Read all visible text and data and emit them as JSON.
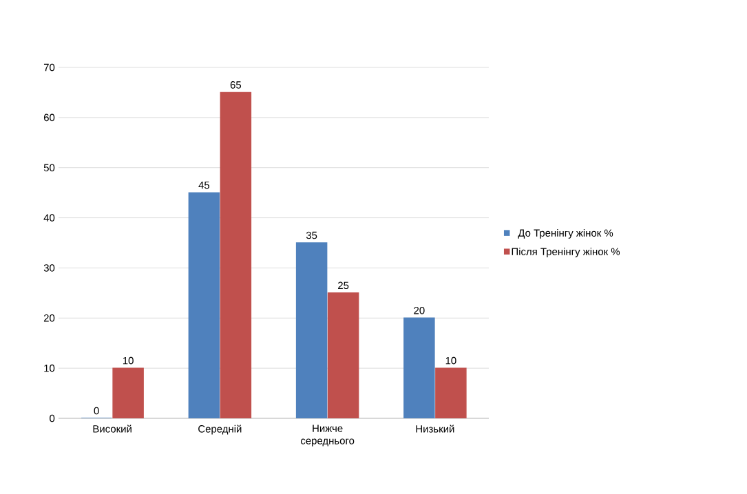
{
  "chart_data": {
    "type": "bar",
    "categories": [
      "Високий",
      "Середній",
      "Нижче середнього",
      "Низький"
    ],
    "series": [
      {
        "name": "До Тренінгу жінок %",
        "color": "#4f81bd",
        "values": [
          0,
          45,
          35,
          20
        ]
      },
      {
        "name": "Після Тренінгу жінок %",
        "color": "#c0504d",
        "values": [
          10,
          65,
          25,
          10
        ]
      }
    ],
    "ylim": [
      0,
      70
    ],
    "yticks": [
      0,
      10,
      20,
      30,
      40,
      50,
      60,
      70
    ],
    "grid": "y",
    "legend": "right",
    "data_labels": true
  }
}
